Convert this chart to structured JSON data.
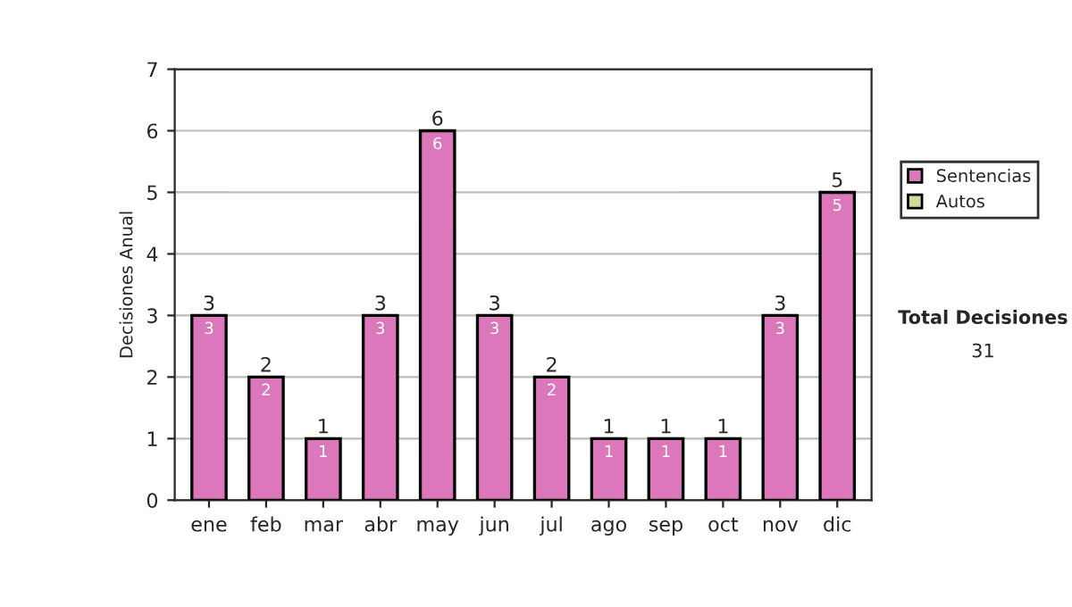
{
  "chart_data": {
    "type": "bar",
    "stacked": true,
    "ylabel": "Decisiones Anual",
    "categories": [
      "ene",
      "feb",
      "mar",
      "abr",
      "may",
      "jun",
      "jul",
      "ago",
      "sep",
      "oct",
      "nov",
      "dic"
    ],
    "series": [
      {
        "name": "Sentencias",
        "color": "#dd77bb",
        "values": [
          3,
          2,
          1,
          3,
          6,
          3,
          2,
          1,
          1,
          1,
          3,
          5
        ],
        "value_labels": [
          "3",
          "2",
          "1",
          "3",
          "6",
          "3",
          "2",
          "1",
          "1",
          "1",
          "3",
          "5"
        ]
      },
      {
        "name": "Autos",
        "color": "#ccdd99",
        "values": [
          0,
          0,
          0,
          0,
          0,
          0,
          0,
          0,
          0,
          0,
          0,
          0
        ]
      }
    ],
    "totals": [
      "3",
      "2",
      "1",
      "3",
      "6",
      "3",
      "2",
      "1",
      "1",
      "1",
      "3",
      "5"
    ],
    "ylim": [
      0,
      7
    ],
    "yticks": [
      0,
      1,
      2,
      3,
      4,
      5,
      6,
      7
    ],
    "grid": "y",
    "legend": "right",
    "annotations": [
      "Total Decisiones",
      "31"
    ]
  }
}
